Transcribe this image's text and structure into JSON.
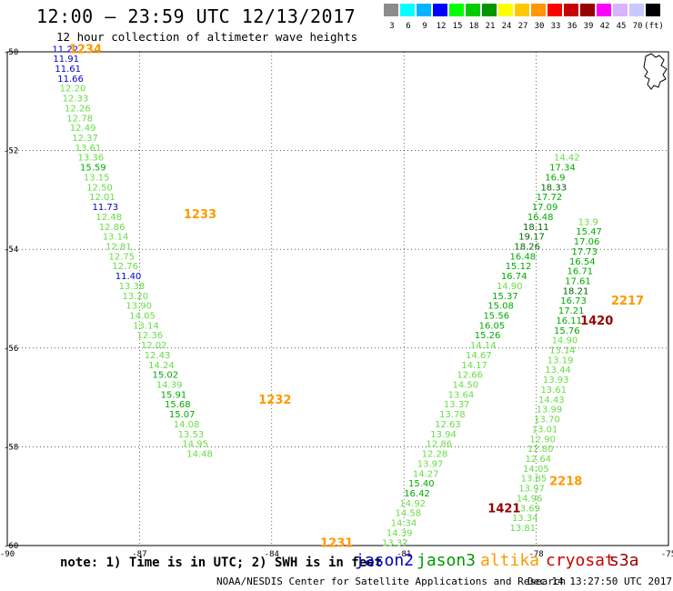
{
  "header": {
    "title": "12:00 — 23:59 UTC 12/13/2017",
    "subtitle": "12 hour collection of altimeter wave heights"
  },
  "colorbar": {
    "colors": [
      "#8c8c8c",
      "#00ffff",
      "#00b4ff",
      "#0000ff",
      "#00ff00",
      "#00cc00",
      "#009600",
      "#ffff00",
      "#ffc800",
      "#ff9600",
      "#ff0000",
      "#c80000",
      "#960000",
      "#ff00ff",
      "#d9b3ff",
      "#c8c8ff",
      "#000000"
    ],
    "labels": [
      "3",
      "6",
      "9",
      "12",
      "15",
      "18",
      "21",
      "24",
      "27",
      "30",
      "33",
      "36",
      "39",
      "42",
      "45",
      "70",
      "(ft)"
    ]
  },
  "legend": {
    "note": "note: 1) Time is in UTC; 2) SWH is in feet",
    "satellites": [
      {
        "name": "jason2",
        "color": "#0000cc"
      },
      {
        "name": "jason3",
        "color": "#009900"
      },
      {
        "name": "altika",
        "color": "#ff9900"
      },
      {
        "name": "cryosat",
        "color": "#cc0000"
      },
      {
        "name": "s3a",
        "color": "#990000"
      }
    ]
  },
  "footer": {
    "credit": "NOAA/NESDIS Center for Satellite Applications and Research",
    "timestamp": "Dec 14 13:27:50 UTC 2017"
  },
  "chart_data": {
    "type": "scatter",
    "title": "12:00 — 23:59 UTC 12/13/2017",
    "subtitle": "12 hour collection of altimeter wave heights",
    "xlim": [
      -90,
      -75
    ],
    "ylim": [
      -60,
      -50
    ],
    "xticks": [
      -90,
      -87,
      -84,
      -81,
      -78,
      -75
    ],
    "yticks": [
      -50,
      -52,
      -54,
      -56,
      -58,
      -60
    ],
    "tick_labels_x": [
      "-90",
      "-87",
      "-84",
      "-81",
      "-78",
      "-75"
    ],
    "tick_labels_y": [
      "-50",
      "-52",
      "-54",
      "-56",
      "-58",
      "-60"
    ],
    "grid": true,
    "color_scale": {
      "breaks": [
        3,
        6,
        9,
        12,
        15,
        18,
        21,
        24,
        27,
        30,
        33,
        36,
        39,
        42,
        45,
        70
      ],
      "colors": [
        "#8c8c8c",
        "#00ffff",
        "#00b4ff",
        "#0000ff",
        "#00ff00",
        "#00cc00",
        "#009600",
        "#ffff00",
        "#ffc800",
        "#ff9600",
        "#ff0000",
        "#c80000",
        "#960000",
        "#ff00ff",
        "#d9b3ff",
        "#c8c8ff"
      ]
    },
    "time_labels": [
      {
        "text": "1234",
        "lon": -88.6,
        "lat": -49.95,
        "sat": "altika"
      },
      {
        "text": "1233",
        "lon": -86.0,
        "lat": -53.3,
        "sat": "altika"
      },
      {
        "text": "1232",
        "lon": -84.3,
        "lat": -57.05,
        "sat": "altika"
      },
      {
        "text": "1231",
        "lon": -82.9,
        "lat": -59.95,
        "sat": "altika"
      },
      {
        "text": "1420",
        "lon": -77.0,
        "lat": -55.45,
        "sat": "s3a"
      },
      {
        "text": "1421",
        "lon": -79.1,
        "lat": -59.25,
        "sat": "s3a"
      },
      {
        "text": "2217",
        "lon": -76.3,
        "lat": -55.05,
        "sat": "altika"
      },
      {
        "text": "2218",
        "lon": -77.7,
        "lat": -58.7,
        "sat": "altika"
      }
    ],
    "series": [
      {
        "name": "altika",
        "points": [
          {
            "lon": -88.98,
            "lat": -49.95,
            "v": "11.22"
          },
          {
            "lon": -88.96,
            "lat": -50.15,
            "v": "11.91"
          },
          {
            "lon": -88.92,
            "lat": -50.35,
            "v": "11.61"
          },
          {
            "lon": -88.86,
            "lat": -50.55,
            "v": "11.66"
          },
          {
            "lon": -88.81,
            "lat": -50.75,
            "v": "12.20"
          },
          {
            "lon": -88.75,
            "lat": -50.95,
            "v": "12.33"
          },
          {
            "lon": -88.7,
            "lat": -51.15,
            "v": "12.26"
          },
          {
            "lon": -88.65,
            "lat": -51.35,
            "v": "12.78"
          },
          {
            "lon": -88.58,
            "lat": -51.55,
            "v": "12.49"
          },
          {
            "lon": -88.53,
            "lat": -51.75,
            "v": "12.37"
          },
          {
            "lon": -88.46,
            "lat": -51.95,
            "v": "13.61"
          },
          {
            "lon": -88.4,
            "lat": -52.15,
            "v": "13.36"
          },
          {
            "lon": -88.35,
            "lat": -52.35,
            "v": "15.59"
          },
          {
            "lon": -88.27,
            "lat": -52.55,
            "v": "13.15"
          },
          {
            "lon": -88.2,
            "lat": -52.75,
            "v": "12.50"
          },
          {
            "lon": -88.14,
            "lat": -52.95,
            "v": "12.01"
          },
          {
            "lon": -88.07,
            "lat": -53.15,
            "v": "11.73"
          },
          {
            "lon": -87.99,
            "lat": -53.35,
            "v": "12.48"
          },
          {
            "lon": -87.92,
            "lat": -53.55,
            "v": "12.86"
          },
          {
            "lon": -87.84,
            "lat": -53.75,
            "v": "13.14"
          },
          {
            "lon": -87.77,
            "lat": -53.95,
            "v": "12.81"
          },
          {
            "lon": -87.7,
            "lat": -54.15,
            "v": "12.75"
          },
          {
            "lon": -87.62,
            "lat": -54.35,
            "v": "12.76"
          },
          {
            "lon": -87.55,
            "lat": -54.55,
            "v": "11.40"
          },
          {
            "lon": -87.47,
            "lat": -54.75,
            "v": "13.38"
          },
          {
            "lon": -87.39,
            "lat": -54.95,
            "v": "13.20"
          },
          {
            "lon": -87.31,
            "lat": -55.15,
            "v": "13.90"
          },
          {
            "lon": -87.23,
            "lat": -55.35,
            "v": "14.05"
          },
          {
            "lon": -87.15,
            "lat": -55.55,
            "v": "13.14"
          },
          {
            "lon": -87.06,
            "lat": -55.75,
            "v": "12.36"
          },
          {
            "lon": -86.97,
            "lat": -55.95,
            "v": "12.02"
          },
          {
            "lon": -86.89,
            "lat": -56.15,
            "v": "12.43"
          },
          {
            "lon": -86.8,
            "lat": -56.35,
            "v": "14.24"
          },
          {
            "lon": -86.71,
            "lat": -56.55,
            "v": "15.02"
          },
          {
            "lon": -86.62,
            "lat": -56.75,
            "v": "14.39"
          },
          {
            "lon": -86.52,
            "lat": -56.95,
            "v": "15.91"
          },
          {
            "lon": -86.43,
            "lat": -57.15,
            "v": "15.68"
          },
          {
            "lon": -86.33,
            "lat": -57.35,
            "v": "15.07"
          },
          {
            "lon": -86.23,
            "lat": -57.55,
            "v": "14.08"
          },
          {
            "lon": -86.13,
            "lat": -57.75,
            "v": "13.53"
          },
          {
            "lon": -86.03,
            "lat": -57.95,
            "v": "14.95"
          },
          {
            "lon": -85.93,
            "lat": -58.15,
            "v": "14.48"
          }
        ]
      },
      {
        "name": "s3a",
        "points": [
          {
            "lon": -81.5,
            "lat": -59.95,
            "v": "13.37"
          },
          {
            "lon": -81.4,
            "lat": -59.75,
            "v": "14.39"
          },
          {
            "lon": -81.3,
            "lat": -59.55,
            "v": "14.34"
          },
          {
            "lon": -81.2,
            "lat": -59.35,
            "v": "14.58"
          },
          {
            "lon": -81.1,
            "lat": -59.15,
            "v": "14.92"
          },
          {
            "lon": -81.0,
            "lat": -58.95,
            "v": "16.42"
          },
          {
            "lon": -80.9,
            "lat": -58.75,
            "v": "15.40"
          },
          {
            "lon": -80.8,
            "lat": -58.55,
            "v": "14.27"
          },
          {
            "lon": -80.7,
            "lat": -58.35,
            "v": "13.97"
          },
          {
            "lon": -80.6,
            "lat": -58.15,
            "v": "12.28"
          },
          {
            "lon": -80.5,
            "lat": -57.95,
            "v": "12.86"
          },
          {
            "lon": -80.4,
            "lat": -57.75,
            "v": "13.94"
          },
          {
            "lon": -80.3,
            "lat": -57.55,
            "v": "12.63"
          },
          {
            "lon": -80.2,
            "lat": -57.35,
            "v": "13.78"
          },
          {
            "lon": -80.1,
            "lat": -57.15,
            "v": "13.37"
          },
          {
            "lon": -80.0,
            "lat": -56.95,
            "v": "13.64"
          },
          {
            "lon": -79.9,
            "lat": -56.75,
            "v": "14.50"
          },
          {
            "lon": -79.8,
            "lat": -56.55,
            "v": "12.66"
          },
          {
            "lon": -79.7,
            "lat": -56.35,
            "v": "14.17"
          },
          {
            "lon": -79.6,
            "lat": -56.15,
            "v": "14.67"
          },
          {
            "lon": -79.5,
            "lat": -55.95,
            "v": "14.14"
          },
          {
            "lon": -79.4,
            "lat": -55.75,
            "v": "15.26"
          },
          {
            "lon": -79.3,
            "lat": -55.55,
            "v": "16.05"
          },
          {
            "lon": -79.2,
            "lat": -55.35,
            "v": "15.56"
          },
          {
            "lon": -79.1,
            "lat": -55.15,
            "v": "15.08"
          },
          {
            "lon": -79.0,
            "lat": -54.95,
            "v": "15.37"
          },
          {
            "lon": -78.9,
            "lat": -54.75,
            "v": "14.90"
          },
          {
            "lon": -78.8,
            "lat": -54.55,
            "v": "16.74"
          },
          {
            "lon": -78.7,
            "lat": -54.35,
            "v": "15.12"
          },
          {
            "lon": -78.6,
            "lat": -54.15,
            "v": "16.48"
          },
          {
            "lon": -78.5,
            "lat": -53.95,
            "v": "18.26"
          },
          {
            "lon": -78.4,
            "lat": -53.75,
            "v": "19.17"
          },
          {
            "lon": -78.3,
            "lat": -53.55,
            "v": "18.11"
          },
          {
            "lon": -78.2,
            "lat": -53.35,
            "v": "16.48"
          },
          {
            "lon": -78.1,
            "lat": -53.15,
            "v": "17.09"
          },
          {
            "lon": -78.0,
            "lat": -52.95,
            "v": "17.72"
          },
          {
            "lon": -77.9,
            "lat": -52.75,
            "v": "18.33"
          },
          {
            "lon": -77.8,
            "lat": -52.55,
            "v": "16.9"
          },
          {
            "lon": -77.7,
            "lat": -52.35,
            "v": "17.34"
          },
          {
            "lon": -77.6,
            "lat": -52.15,
            "v": "14.42"
          }
        ]
      },
      {
        "name": "altika-2",
        "points": [
          {
            "lon": -78.6,
            "lat": -59.65,
            "v": "13.81"
          },
          {
            "lon": -78.55,
            "lat": -59.45,
            "v": "13.34"
          },
          {
            "lon": -78.5,
            "lat": -59.25,
            "v": "13.69"
          },
          {
            "lon": -78.45,
            "lat": -59.05,
            "v": "14.96"
          },
          {
            "lon": -78.4,
            "lat": -58.85,
            "v": "13.97"
          },
          {
            "lon": -78.35,
            "lat": -58.65,
            "v": "13.85"
          },
          {
            "lon": -78.3,
            "lat": -58.45,
            "v": "14.05"
          },
          {
            "lon": -78.25,
            "lat": -58.25,
            "v": "12.64"
          },
          {
            "lon": -78.2,
            "lat": -58.05,
            "v": "12.80"
          },
          {
            "lon": -78.15,
            "lat": -57.85,
            "v": "12.90"
          },
          {
            "lon": -78.1,
            "lat": -57.65,
            "v": "13.01"
          },
          {
            "lon": -78.05,
            "lat": -57.45,
            "v": "13.70"
          },
          {
            "lon": -78.0,
            "lat": -57.25,
            "v": "13.99"
          },
          {
            "lon": -77.95,
            "lat": -57.05,
            "v": "14.43"
          },
          {
            "lon": -77.9,
            "lat": -56.85,
            "v": "13.61"
          },
          {
            "lon": -77.85,
            "lat": -56.65,
            "v": "13.93"
          },
          {
            "lon": -77.8,
            "lat": -56.45,
            "v": "13.44"
          },
          {
            "lon": -77.75,
            "lat": -56.25,
            "v": "13.19"
          },
          {
            "lon": -77.7,
            "lat": -56.05,
            "v": "13.14"
          },
          {
            "lon": -77.65,
            "lat": -55.85,
            "v": "14.90"
          },
          {
            "lon": -77.6,
            "lat": -55.65,
            "v": "15.76"
          },
          {
            "lon": -77.55,
            "lat": -55.45,
            "v": "16.11"
          },
          {
            "lon": -77.5,
            "lat": -55.25,
            "v": "17.21"
          },
          {
            "lon": -77.45,
            "lat": -55.05,
            "v": "16.73"
          },
          {
            "lon": -77.4,
            "lat": -54.85,
            "v": "18.21"
          },
          {
            "lon": -77.35,
            "lat": -54.65,
            "v": "17.61"
          },
          {
            "lon": -77.3,
            "lat": -54.45,
            "v": "16.71"
          },
          {
            "lon": -77.25,
            "lat": -54.25,
            "v": "16.54"
          },
          {
            "lon": -77.2,
            "lat": -54.05,
            "v": "17.73"
          },
          {
            "lon": -77.15,
            "lat": -53.85,
            "v": "17.06"
          },
          {
            "lon": -77.1,
            "lat": -53.65,
            "v": "15.47"
          },
          {
            "lon": -77.05,
            "lat": -53.45,
            "v": "13.9"
          }
        ]
      }
    ]
  }
}
